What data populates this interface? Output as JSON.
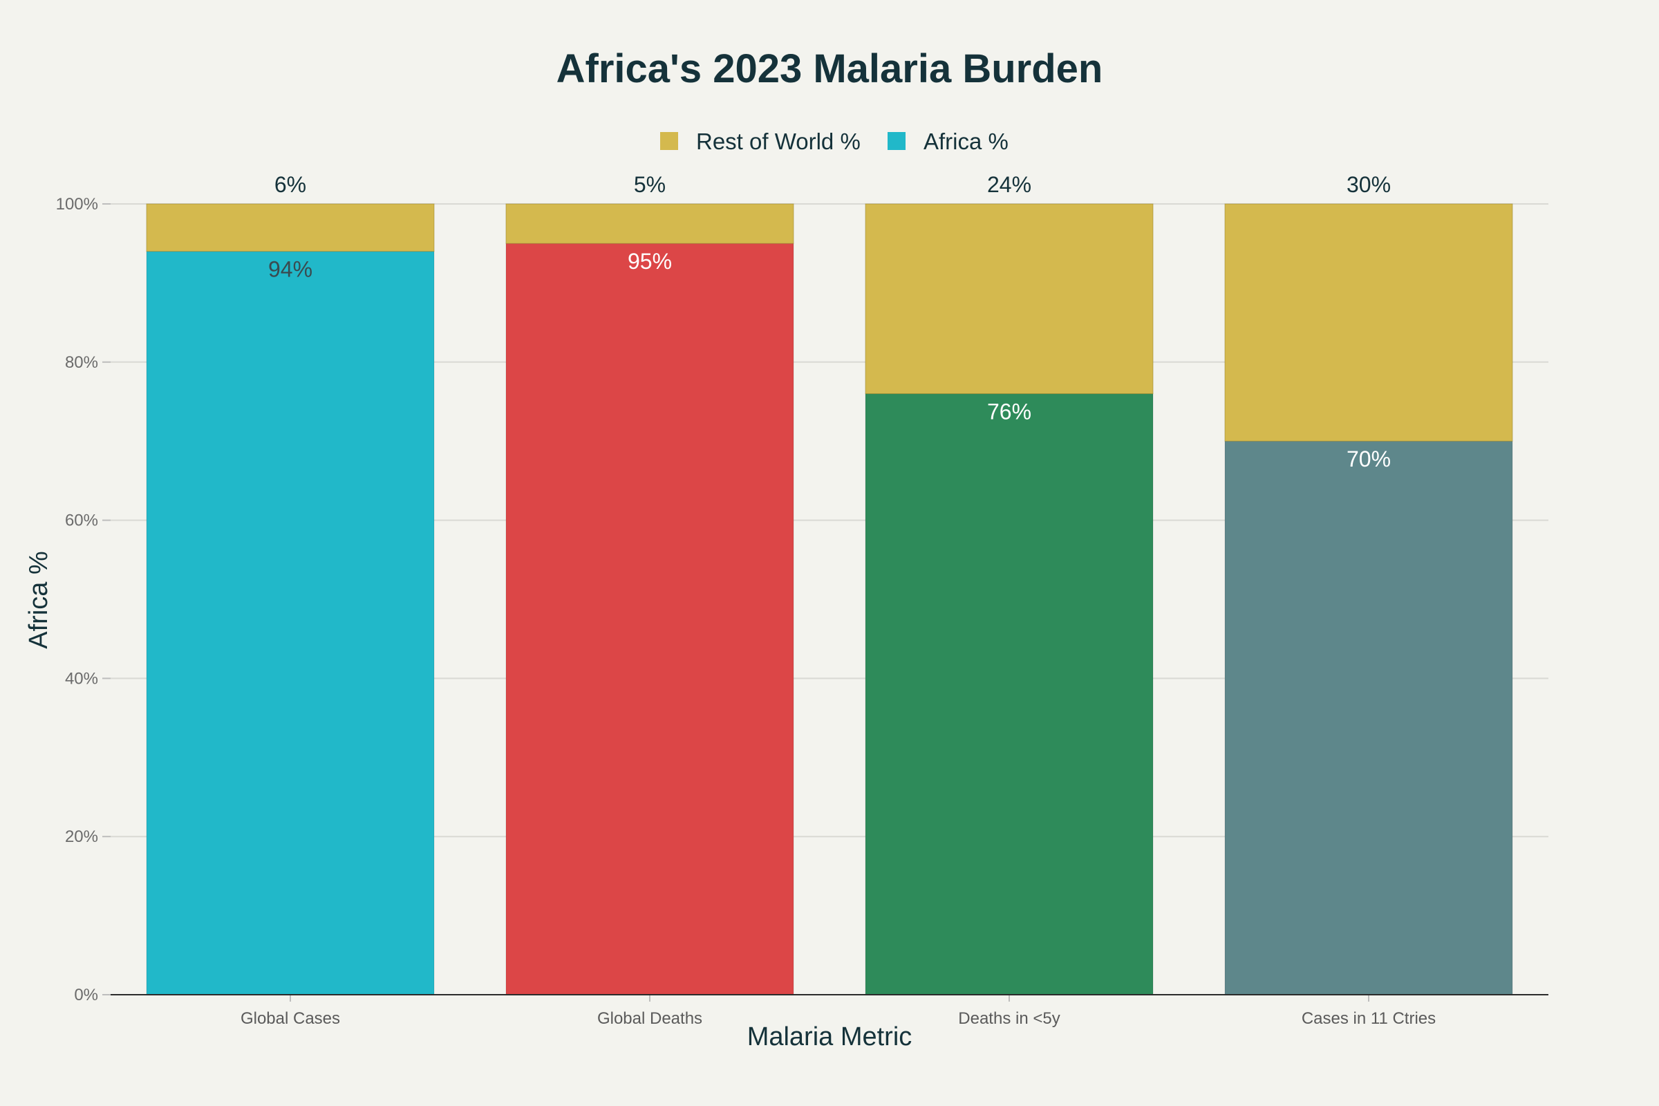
{
  "chart_data": {
    "type": "bar",
    "stacked": true,
    "title": "Africa's 2023 Malaria Burden",
    "xlabel": "Malaria Metric",
    "ylabel": "Africa %",
    "ylim": [
      0,
      100
    ],
    "yticks": [
      0,
      20,
      40,
      60,
      80,
      100
    ],
    "ytick_labels": [
      "0%",
      "20%",
      "40%",
      "60%",
      "80%",
      "100%"
    ],
    "grid": true,
    "legend_position": "top-center",
    "categories": [
      "Global Cases",
      "Global Deaths",
      "Deaths in <5y",
      "Cases in 11 Ctries"
    ],
    "series": [
      {
        "name": "Africa %",
        "values": [
          94,
          95,
          76,
          70
        ],
        "data_labels": [
          "94%",
          "95%",
          "76%",
          "70%"
        ],
        "colors": [
          "#21b8c9",
          "#dc4647",
          "#2e8b5a",
          "#5e878b"
        ],
        "label_colors": [
          "#3a4a4f",
          "#ffffff",
          "#ffffff",
          "#ffffff"
        ],
        "legend_color": "#21b8c9"
      },
      {
        "name": "Rest of World %",
        "values": [
          6,
          5,
          24,
          30
        ],
        "data_labels": [
          "6%",
          "5%",
          "24%",
          "30%"
        ],
        "color": "#d4b94e",
        "label_color": "#15323a"
      }
    ]
  },
  "legend": {
    "items": [
      {
        "label": "Rest of World %",
        "color": "#d4b94e"
      },
      {
        "label": "Africa %",
        "color": "#21b8c9"
      }
    ]
  },
  "colors": {
    "background": "#f3f3ee",
    "text": "#15323a",
    "grid": "#d9d9d4",
    "axis": "#2b2b2b"
  }
}
